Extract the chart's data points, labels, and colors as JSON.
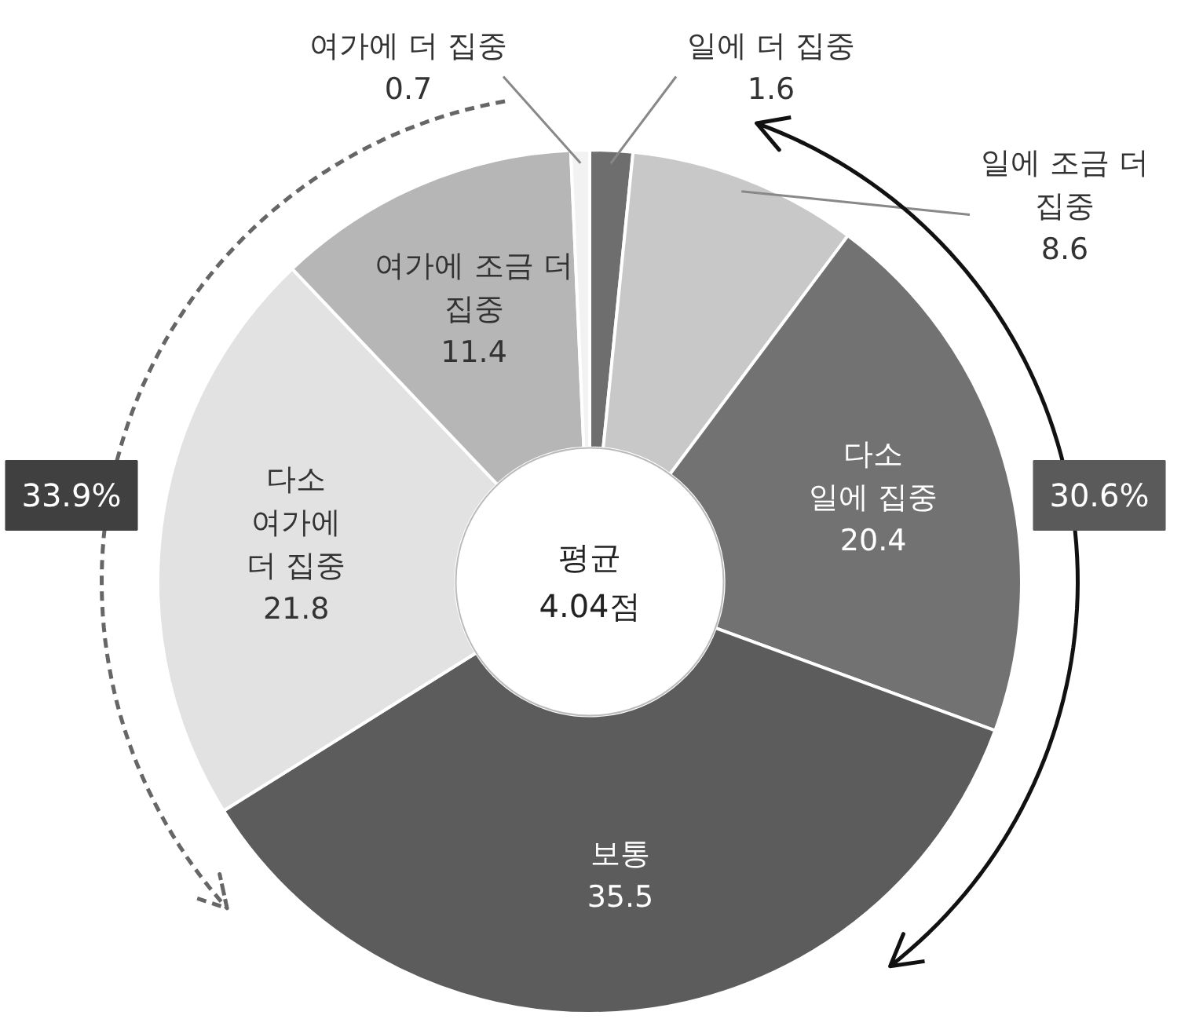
{
  "chart_data": {
    "type": "donut",
    "categories": [
      "일에 더 집중",
      "일에 조금 더\n집중",
      "다소\n일에 집중",
      "보통",
      "다소\n여가에\n더 집중",
      "여가에 조금 더\n집중",
      "여가에 더 집중"
    ],
    "values": [
      1.6,
      8.6,
      20.4,
      35.5,
      21.8,
      11.4,
      0.7
    ],
    "colors": [
      "#6e6e6e",
      "#c8c8c8",
      "#727272",
      "#5c5c5c",
      "#e2e2e2",
      "#b6b6b6",
      "#f2f2f2"
    ],
    "data_labels": true,
    "annotations": [
      "평균\n4.04점",
      "33.9%",
      "30.6%"
    ]
  }
}
